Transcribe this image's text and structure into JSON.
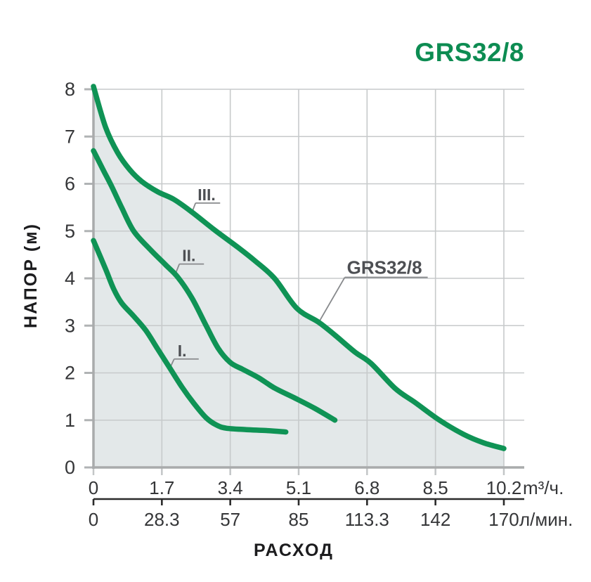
{
  "title": "GRS32/8",
  "colors": {
    "curve_green": "#0F9355",
    "title_green": "#0D8C52",
    "area_fill": "#E3E8E9",
    "grid": "#C7CACB",
    "axis": "#A9ABAC",
    "sub_axis": "#2B2B2B",
    "tick_text": "#353638",
    "annotation_text": "#4D4F53",
    "leader_line": "#87898C"
  },
  "chart_data": {
    "type": "line",
    "title": "GRS32/8",
    "xlabel": "РАСХОД",
    "ylabel": "НАПОР (м)",
    "xlim": [
      0,
      10.2
    ],
    "ylim": [
      0,
      8
    ],
    "grid": true,
    "y_ticks": [
      "0",
      "1",
      "2",
      "3",
      "4",
      "5",
      "6",
      "7",
      "8"
    ],
    "x_tick_values": [
      0,
      1.7,
      3.4,
      5.1,
      6.8,
      8.5,
      10.2
    ],
    "x_rows": [
      {
        "unit": "m³/ч.",
        "labels": [
          "0",
          "1.7",
          "3.4",
          "5.1",
          "6.8",
          "8.5",
          "10.2"
        ]
      },
      {
        "unit": "л/мин.",
        "labels": [
          "0",
          "28.3",
          "57",
          "85",
          "113.3",
          "142",
          "170"
        ]
      }
    ],
    "series": [
      {
        "name": "I.",
        "points": [
          [
            0,
            4.8
          ],
          [
            0.3,
            4.2
          ],
          [
            0.5,
            3.78
          ],
          [
            0.7,
            3.48
          ],
          [
            1.0,
            3.2
          ],
          [
            1.3,
            2.9
          ],
          [
            1.6,
            2.5
          ],
          [
            1.9,
            2.1
          ],
          [
            2.2,
            1.7
          ],
          [
            2.5,
            1.35
          ],
          [
            2.8,
            1.05
          ],
          [
            3.05,
            0.9
          ],
          [
            3.3,
            0.83
          ],
          [
            3.8,
            0.8
          ],
          [
            4.3,
            0.78
          ],
          [
            4.78,
            0.75
          ]
        ]
      },
      {
        "name": "II.",
        "points": [
          [
            0,
            6.7
          ],
          [
            0.25,
            6.28
          ],
          [
            0.45,
            5.95
          ],
          [
            0.7,
            5.5
          ],
          [
            1.0,
            5.0
          ],
          [
            1.4,
            4.62
          ],
          [
            1.8,
            4.28
          ],
          [
            2.1,
            4.02
          ],
          [
            2.45,
            3.58
          ],
          [
            2.8,
            3.0
          ],
          [
            3.1,
            2.52
          ],
          [
            3.4,
            2.22
          ],
          [
            3.7,
            2.08
          ],
          [
            4.1,
            1.9
          ],
          [
            4.5,
            1.68
          ],
          [
            5.0,
            1.47
          ],
          [
            5.5,
            1.25
          ],
          [
            6.0,
            1.0
          ]
        ]
      },
      {
        "name": "III.",
        "fill_below": true,
        "points": [
          [
            0,
            8.06
          ],
          [
            0.3,
            7.2
          ],
          [
            0.6,
            6.66
          ],
          [
            0.9,
            6.3
          ],
          [
            1.2,
            6.05
          ],
          [
            1.6,
            5.83
          ],
          [
            2.0,
            5.67
          ],
          [
            2.45,
            5.4
          ],
          [
            3.0,
            5.03
          ],
          [
            3.6,
            4.65
          ],
          [
            4.0,
            4.38
          ],
          [
            4.5,
            4.0
          ],
          [
            5.05,
            3.37
          ],
          [
            5.6,
            3.07
          ],
          [
            6.0,
            2.8
          ],
          [
            6.5,
            2.44
          ],
          [
            6.9,
            2.2
          ],
          [
            7.5,
            1.67
          ],
          [
            8.0,
            1.37
          ],
          [
            8.6,
            1.0
          ],
          [
            9.2,
            0.7
          ],
          [
            9.7,
            0.52
          ],
          [
            10.2,
            0.4
          ]
        ]
      }
    ],
    "annotations": [
      {
        "label": "I.",
        "anchor": [
          1.9,
          2.1
        ],
        "underline_offset": [
          6,
          -13
        ],
        "underline_len": 35,
        "text_offset": [
          11,
          -17
        ],
        "font_size": 23
      },
      {
        "label": "II.",
        "anchor": [
          2.03,
          4.08
        ],
        "underline_offset": [
          6,
          -15
        ],
        "underline_len": 35,
        "text_offset": [
          10,
          -19
        ],
        "font_size": 23
      },
      {
        "label": "III.",
        "anchor": [
          2.45,
          5.4
        ],
        "underline_offset": [
          5,
          -13
        ],
        "underline_len": 35,
        "text_offset": [
          8,
          -17
        ],
        "font_size": 23
      },
      {
        "label": "GRS32/8",
        "anchor": [
          5.6,
          3.07
        ],
        "underline_offset": [
          37,
          -64
        ],
        "underline_len": 118,
        "text_offset": [
          40,
          -69
        ],
        "font_size": 26
      }
    ]
  }
}
